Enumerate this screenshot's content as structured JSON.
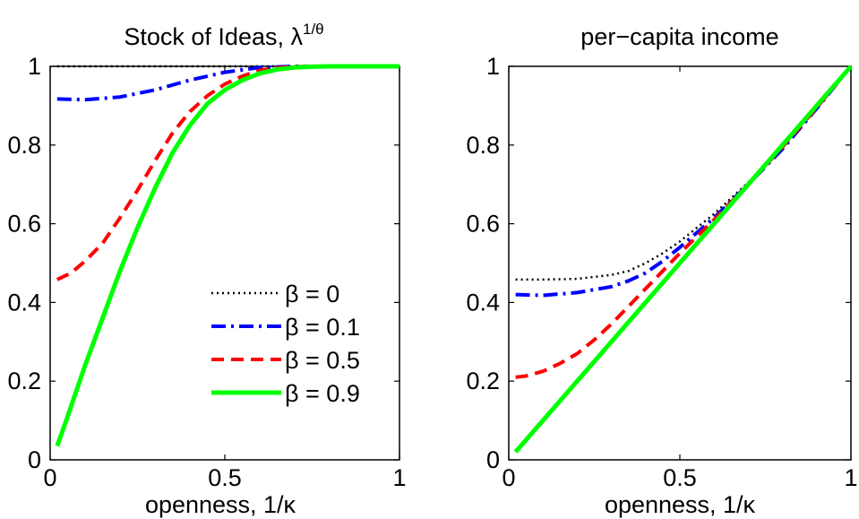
{
  "chart_data": [
    {
      "type": "line",
      "title": "Stock of Ideas, ",
      "title_symbol": "λ",
      "title_sup": "1/θ",
      "xlabel": "openness, 1/κ",
      "ylabel": "",
      "xlim": [
        0,
        1
      ],
      "ylim": [
        0,
        1
      ],
      "xticks": [
        "0",
        "0.5",
        "1"
      ],
      "yticks": [
        "0",
        "0.2",
        "0.4",
        "0.6",
        "0.8",
        "1"
      ],
      "legend": {
        "placement": "bottom-right",
        "entries": [
          "β = 0",
          "β = 0.1",
          "β = 0.5",
          "β = 0.9"
        ]
      },
      "series": [
        {
          "name": "β = 0",
          "color": "#000000",
          "style": "dotted",
          "x": [
            0.02,
            0.5,
            1.0
          ],
          "y": [
            1.0,
            1.0,
            1.0
          ]
        },
        {
          "name": "β = 0.1",
          "color": "#0000ff",
          "style": "dashdot",
          "x": [
            0.02,
            0.1,
            0.2,
            0.3,
            0.4,
            0.5,
            0.6,
            0.7,
            1.0
          ],
          "y": [
            0.917,
            0.915,
            0.922,
            0.94,
            0.965,
            0.985,
            0.997,
            1.0,
            1.0
          ]
        },
        {
          "name": "β = 0.5",
          "color": "#ff0000",
          "style": "dashed",
          "x": [
            0.02,
            0.06,
            0.1,
            0.15,
            0.2,
            0.25,
            0.3,
            0.35,
            0.4,
            0.45,
            0.5,
            0.55,
            0.6,
            0.65,
            0.7,
            0.8,
            1.0
          ],
          "y": [
            0.458,
            0.475,
            0.505,
            0.55,
            0.615,
            0.685,
            0.76,
            0.83,
            0.885,
            0.925,
            0.955,
            0.975,
            0.99,
            0.996,
            0.999,
            1.0,
            1.0
          ]
        },
        {
          "name": "β = 0.9",
          "color": "#00ff00",
          "style": "solid",
          "x": [
            0.02,
            0.05,
            0.1,
            0.15,
            0.2,
            0.25,
            0.3,
            0.35,
            0.4,
            0.45,
            0.5,
            0.55,
            0.6,
            0.65,
            0.7,
            0.75,
            0.8,
            0.9,
            1.0
          ],
          "y": [
            0.035,
            0.11,
            0.24,
            0.36,
            0.48,
            0.59,
            0.69,
            0.78,
            0.85,
            0.905,
            0.94,
            0.965,
            0.982,
            0.992,
            0.997,
            0.999,
            1.0,
            1.0,
            1.0
          ]
        }
      ]
    },
    {
      "type": "line",
      "title": "per−capita income",
      "xlabel": "openness, 1/κ",
      "ylabel": "",
      "xlim": [
        0,
        1
      ],
      "ylim": [
        0,
        1
      ],
      "xticks": [
        "0",
        "0.5",
        "1"
      ],
      "yticks": [
        "0",
        "0.2",
        "0.4",
        "0.6",
        "0.8",
        "1"
      ],
      "series": [
        {
          "name": "β = 0",
          "color": "#000000",
          "style": "dotted",
          "x": [
            0.02,
            0.1,
            0.2,
            0.3,
            0.35,
            0.4,
            0.45,
            0.5,
            0.6,
            0.7,
            0.8,
            0.9,
            1.0
          ],
          "y": [
            0.458,
            0.458,
            0.46,
            0.47,
            0.48,
            0.5,
            0.525,
            0.555,
            0.625,
            0.705,
            0.795,
            0.895,
            1.0
          ]
        },
        {
          "name": "β = 0.1",
          "color": "#0000ff",
          "style": "dashdot",
          "x": [
            0.02,
            0.1,
            0.2,
            0.3,
            0.35,
            0.4,
            0.45,
            0.5,
            0.6,
            0.7,
            0.8,
            0.9,
            1.0
          ],
          "y": [
            0.42,
            0.418,
            0.425,
            0.44,
            0.455,
            0.475,
            0.505,
            0.54,
            0.615,
            0.7,
            0.79,
            0.893,
            1.0
          ]
        },
        {
          "name": "β = 0.5",
          "color": "#ff0000",
          "style": "dashed",
          "x": [
            0.02,
            0.05,
            0.1,
            0.15,
            0.2,
            0.25,
            0.3,
            0.35,
            0.4,
            0.45,
            0.5,
            0.6,
            0.7,
            0.8,
            0.9,
            1.0
          ],
          "y": [
            0.21,
            0.213,
            0.225,
            0.245,
            0.27,
            0.305,
            0.345,
            0.39,
            0.435,
            0.48,
            0.525,
            0.61,
            0.7,
            0.795,
            0.895,
            1.0
          ]
        },
        {
          "name": "β = 0.9",
          "color": "#00ff00",
          "style": "solid",
          "x": [
            0.02,
            1.0
          ],
          "y": [
            0.02,
            1.0
          ]
        }
      ]
    }
  ]
}
